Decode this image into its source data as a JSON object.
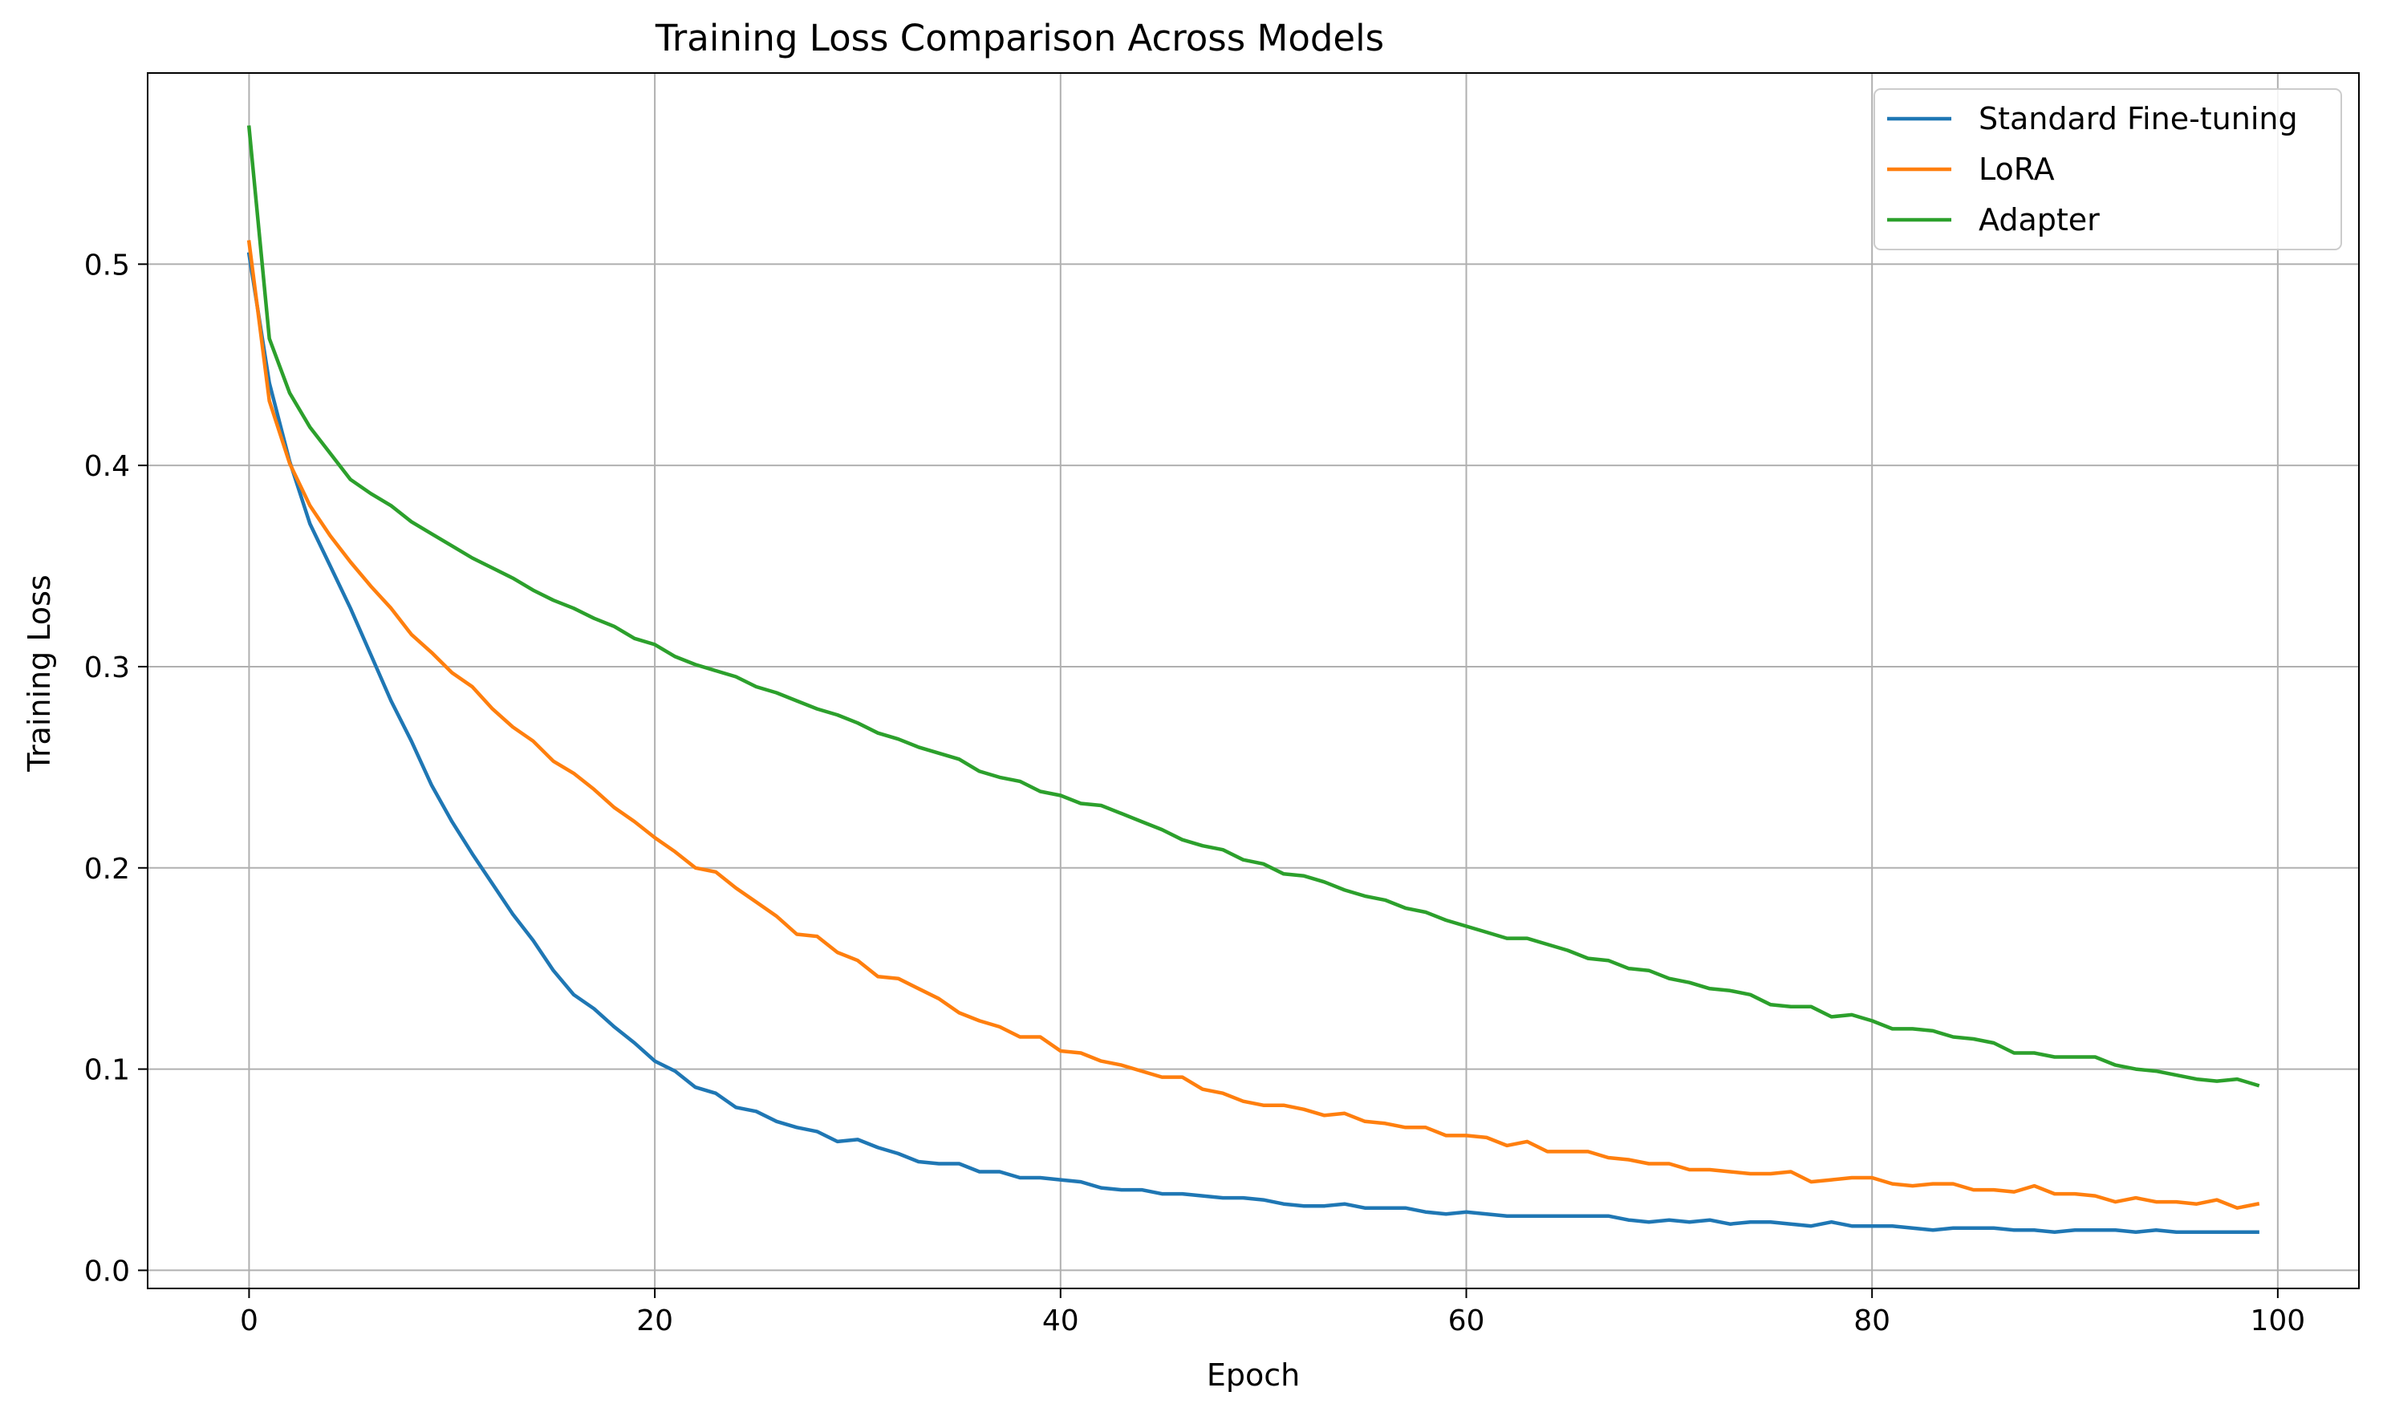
{
  "chart_data": {
    "type": "line",
    "title": "Training Loss Comparison Across Models",
    "xlabel": "Epoch",
    "ylabel": "Training Loss",
    "xlim": [
      -5,
      104
    ],
    "ylim": [
      -0.009,
      0.595
    ],
    "xticks": [
      0,
      20,
      40,
      60,
      80,
      100
    ],
    "yticks": [
      0.0,
      0.1,
      0.2,
      0.3,
      0.4,
      0.5
    ],
    "xtick_labels": [
      "0",
      "20",
      "40",
      "60",
      "80",
      "100"
    ],
    "ytick_labels": [
      "0.0",
      "0.1",
      "0.2",
      "0.3",
      "0.4",
      "0.5"
    ],
    "grid": true,
    "legend_position": "top-right",
    "series": [
      {
        "name": "Standard Fine-tuning",
        "color": "#1f77b4",
        "x": [
          0,
          1,
          2,
          3,
          4,
          5,
          6,
          7,
          8,
          9,
          10,
          11,
          12,
          13,
          14,
          15,
          16,
          17,
          18,
          19,
          20,
          21,
          22,
          23,
          24,
          25,
          26,
          27,
          28,
          29,
          30,
          31,
          32,
          33,
          34,
          35,
          36,
          37,
          38,
          39,
          40,
          41,
          42,
          43,
          44,
          45,
          46,
          47,
          48,
          49,
          50,
          51,
          52,
          53,
          54,
          55,
          56,
          57,
          58,
          59,
          60,
          61,
          62,
          63,
          64,
          65,
          66,
          67,
          68,
          69,
          70,
          71,
          72,
          73,
          74,
          75,
          76,
          77,
          78,
          79,
          80,
          81,
          82,
          83,
          84,
          85,
          86,
          87,
          88,
          89,
          90,
          91,
          92,
          93,
          94,
          95,
          96,
          97,
          98,
          99
        ],
        "y": [
          0.505,
          0.441,
          0.402,
          0.371,
          0.35,
          0.329,
          0.306,
          0.283,
          0.263,
          0.241,
          0.223,
          0.207,
          0.192,
          0.177,
          0.164,
          0.149,
          0.137,
          0.13,
          0.121,
          0.113,
          0.104,
          0.099,
          0.091,
          0.088,
          0.081,
          0.079,
          0.074,
          0.071,
          0.069,
          0.064,
          0.065,
          0.061,
          0.058,
          0.054,
          0.053,
          0.053,
          0.049,
          0.049,
          0.046,
          0.046,
          0.045,
          0.044,
          0.041,
          0.04,
          0.04,
          0.038,
          0.038,
          0.037,
          0.036,
          0.036,
          0.035,
          0.033,
          0.032,
          0.032,
          0.033,
          0.031,
          0.031,
          0.031,
          0.029,
          0.028,
          0.029,
          0.028,
          0.027,
          0.027,
          0.027,
          0.027,
          0.027,
          0.027,
          0.025,
          0.024,
          0.025,
          0.024,
          0.025,
          0.023,
          0.024,
          0.024,
          0.023,
          0.022,
          0.024,
          0.022,
          0.022,
          0.022,
          0.021,
          0.02,
          0.021,
          0.021,
          0.021,
          0.02,
          0.02,
          0.019,
          0.02,
          0.02,
          0.02,
          0.019,
          0.02,
          0.019,
          0.019,
          0.019,
          0.019,
          0.019
        ]
      },
      {
        "name": "LoRA",
        "color": "#ff7f0e",
        "x": [
          0,
          1,
          2,
          3,
          4,
          5,
          6,
          7,
          8,
          9,
          10,
          11,
          12,
          13,
          14,
          15,
          16,
          17,
          18,
          19,
          20,
          21,
          22,
          23,
          24,
          25,
          26,
          27,
          28,
          29,
          30,
          31,
          32,
          33,
          34,
          35,
          36,
          37,
          38,
          39,
          40,
          41,
          42,
          43,
          44,
          45,
          46,
          47,
          48,
          49,
          50,
          51,
          52,
          53,
          54,
          55,
          56,
          57,
          58,
          59,
          60,
          61,
          62,
          63,
          64,
          65,
          66,
          67,
          68,
          69,
          70,
          71,
          72,
          73,
          74,
          75,
          76,
          77,
          78,
          79,
          80,
          81,
          82,
          83,
          84,
          85,
          86,
          87,
          88,
          89,
          90,
          91,
          92,
          93,
          94,
          95,
          96,
          97,
          98,
          99
        ],
        "y": [
          0.511,
          0.432,
          0.401,
          0.38,
          0.365,
          0.352,
          0.34,
          0.329,
          0.316,
          0.307,
          0.297,
          0.29,
          0.279,
          0.27,
          0.263,
          0.253,
          0.247,
          0.239,
          0.23,
          0.223,
          0.215,
          0.208,
          0.2,
          0.198,
          0.19,
          0.183,
          0.176,
          0.167,
          0.166,
          0.158,
          0.154,
          0.146,
          0.145,
          0.14,
          0.135,
          0.128,
          0.124,
          0.121,
          0.116,
          0.116,
          0.109,
          0.108,
          0.104,
          0.102,
          0.099,
          0.096,
          0.096,
          0.09,
          0.088,
          0.084,
          0.082,
          0.082,
          0.08,
          0.077,
          0.078,
          0.074,
          0.073,
          0.071,
          0.071,
          0.067,
          0.067,
          0.066,
          0.062,
          0.064,
          0.059,
          0.059,
          0.059,
          0.056,
          0.055,
          0.053,
          0.053,
          0.05,
          0.05,
          0.049,
          0.048,
          0.048,
          0.049,
          0.044,
          0.045,
          0.046,
          0.046,
          0.043,
          0.042,
          0.043,
          0.043,
          0.04,
          0.04,
          0.039,
          0.042,
          0.038,
          0.038,
          0.037,
          0.034,
          0.036,
          0.034,
          0.034,
          0.033,
          0.035,
          0.031,
          0.033
        ]
      },
      {
        "name": "Adapter",
        "color": "#2ca02c",
        "x": [
          0,
          1,
          2,
          3,
          4,
          5,
          6,
          7,
          8,
          9,
          10,
          11,
          12,
          13,
          14,
          15,
          16,
          17,
          18,
          19,
          20,
          21,
          22,
          23,
          24,
          25,
          26,
          27,
          28,
          29,
          30,
          31,
          32,
          33,
          34,
          35,
          36,
          37,
          38,
          39,
          40,
          41,
          42,
          43,
          44,
          45,
          46,
          47,
          48,
          49,
          50,
          51,
          52,
          53,
          54,
          55,
          56,
          57,
          58,
          59,
          60,
          61,
          62,
          63,
          64,
          65,
          66,
          67,
          68,
          69,
          70,
          71,
          72,
          73,
          74,
          75,
          76,
          77,
          78,
          79,
          80,
          81,
          82,
          83,
          84,
          85,
          86,
          87,
          88,
          89,
          90,
          91,
          92,
          93,
          94,
          95,
          96,
          97,
          98,
          99
        ],
        "y": [
          0.568,
          0.463,
          0.436,
          0.419,
          0.406,
          0.393,
          0.386,
          0.38,
          0.372,
          0.366,
          0.36,
          0.354,
          0.349,
          0.344,
          0.338,
          0.333,
          0.329,
          0.324,
          0.32,
          0.314,
          0.311,
          0.305,
          0.301,
          0.298,
          0.295,
          0.29,
          0.287,
          0.283,
          0.279,
          0.276,
          0.272,
          0.267,
          0.264,
          0.26,
          0.257,
          0.254,
          0.248,
          0.245,
          0.243,
          0.238,
          0.236,
          0.232,
          0.231,
          0.227,
          0.223,
          0.219,
          0.214,
          0.211,
          0.209,
          0.204,
          0.202,
          0.197,
          0.196,
          0.193,
          0.189,
          0.186,
          0.184,
          0.18,
          0.178,
          0.174,
          0.171,
          0.168,
          0.165,
          0.165,
          0.162,
          0.159,
          0.155,
          0.154,
          0.15,
          0.149,
          0.145,
          0.143,
          0.14,
          0.139,
          0.137,
          0.132,
          0.131,
          0.131,
          0.126,
          0.127,
          0.124,
          0.12,
          0.12,
          0.119,
          0.116,
          0.115,
          0.113,
          0.108,
          0.108,
          0.106,
          0.106,
          0.106,
          0.102,
          0.1,
          0.099,
          0.097,
          0.095,
          0.094,
          0.095,
          0.092
        ]
      }
    ]
  }
}
